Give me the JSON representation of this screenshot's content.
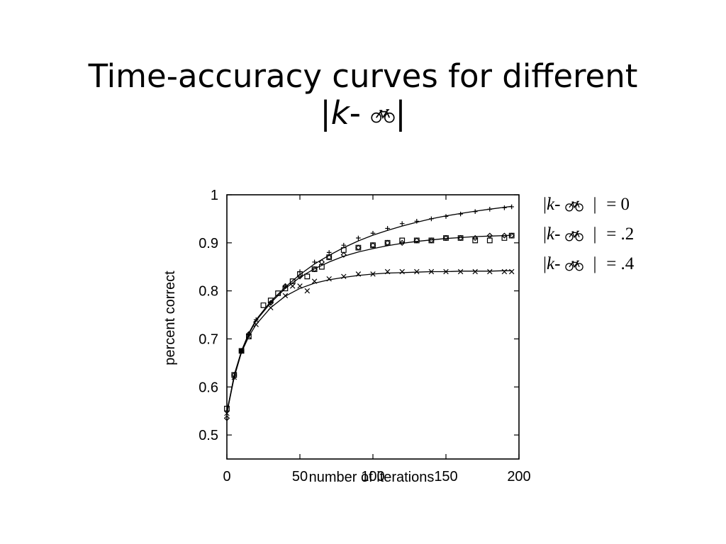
{
  "title": {
    "line1": "Time-accuracy curves for different",
    "line2_prefix": "|",
    "line2_var": "k",
    "line2_dash": "-",
    "line2_suffix": "|",
    "bike_icon": "bicycle-icon"
  },
  "legend": [
    {
      "bar_open": "|",
      "var": "k",
      "dash": "-",
      "bar_close": "|",
      "value": "=  0"
    },
    {
      "bar_open": "|",
      "var": "k",
      "dash": "-",
      "bar_close": "|",
      "value": "= .2"
    },
    {
      "bar_open": "|",
      "var": "k",
      "dash": "-",
      "bar_close": "|",
      "value": "= .4"
    }
  ],
  "chart_data": {
    "type": "scatter",
    "xlabel": "number of iterations",
    "ylabel": "percent  correct",
    "xlim": [
      0,
      200
    ],
    "ylim": [
      0.45,
      1.0
    ],
    "xticks": [
      "0",
      "50",
      "100",
      "150",
      "200"
    ],
    "yticks": [
      "1",
      "0.9",
      "0.8",
      "0.7",
      "0.6",
      "0.5"
    ],
    "ytick_values": [
      1.0,
      0.9,
      0.8,
      0.7,
      0.6,
      0.5
    ],
    "xtick_values": [
      0,
      50,
      100,
      150,
      200
    ],
    "grid": false,
    "series": [
      {
        "marker": "plus",
        "x": [
          0,
          5,
          10,
          15,
          20,
          30,
          40,
          50,
          60,
          70,
          80,
          90,
          100,
          110,
          120,
          130,
          140,
          150,
          160,
          170,
          180,
          190,
          195
        ],
        "y": [
          0.55,
          0.62,
          0.675,
          0.71,
          0.74,
          0.775,
          0.81,
          0.84,
          0.86,
          0.88,
          0.895,
          0.91,
          0.92,
          0.93,
          0.94,
          0.945,
          0.95,
          0.955,
          0.96,
          0.965,
          0.97,
          0.973,
          0.975
        ],
        "fit_x": [
          0,
          5,
          10,
          15,
          20,
          30,
          40,
          50,
          60,
          70,
          80,
          90,
          100,
          110,
          120,
          130,
          140,
          150,
          160,
          170,
          180,
          190,
          195
        ],
        "fit_y": [
          0.55,
          0.62,
          0.675,
          0.712,
          0.74,
          0.778,
          0.808,
          0.834,
          0.856,
          0.874,
          0.89,
          0.904,
          0.916,
          0.926,
          0.935,
          0.943,
          0.95,
          0.956,
          0.961,
          0.966,
          0.97,
          0.974,
          0.976
        ]
      },
      {
        "marker": "diamond",
        "x": [
          0,
          5,
          10,
          15,
          20,
          30,
          40,
          50,
          60,
          65,
          70,
          80,
          90,
          100,
          110,
          120,
          130,
          140,
          150,
          160,
          170,
          180,
          190,
          195
        ],
        "y": [
          0.535,
          0.625,
          0.675,
          0.71,
          0.735,
          0.775,
          0.81,
          0.83,
          0.845,
          0.86,
          0.87,
          0.875,
          0.89,
          0.895,
          0.9,
          0.9,
          0.905,
          0.905,
          0.91,
          0.91,
          0.91,
          0.915,
          0.915,
          0.915
        ],
        "fit_x": [
          0,
          5,
          10,
          15,
          20,
          30,
          40,
          50,
          60,
          70,
          80,
          90,
          100,
          110,
          120,
          130,
          140,
          150,
          160,
          170,
          180,
          190,
          195
        ],
        "fit_y": [
          0.545,
          0.625,
          0.675,
          0.71,
          0.738,
          0.775,
          0.805,
          0.828,
          0.846,
          0.86,
          0.872,
          0.881,
          0.888,
          0.894,
          0.899,
          0.903,
          0.906,
          0.909,
          0.911,
          0.913,
          0.914,
          0.915,
          0.916
        ]
      },
      {
        "marker": "square",
        "x": [
          0,
          5,
          10,
          15,
          25,
          30,
          35,
          40,
          45,
          50,
          55,
          60,
          65,
          70,
          80,
          90,
          100,
          110,
          120,
          130,
          140,
          150,
          160,
          170,
          180,
          190,
          195
        ],
        "y": [
          0.555,
          0.625,
          0.675,
          0.705,
          0.77,
          0.78,
          0.795,
          0.805,
          0.82,
          0.835,
          0.83,
          0.845,
          0.85,
          0.87,
          0.885,
          0.89,
          0.895,
          0.9,
          0.905,
          0.905,
          0.905,
          0.91,
          0.91,
          0.905,
          0.905,
          0.91,
          0.915
        ]
      },
      {
        "marker": "cross",
        "x": [
          0,
          5,
          10,
          15,
          20,
          30,
          40,
          45,
          50,
          55,
          60,
          70,
          80,
          90,
          100,
          110,
          120,
          130,
          140,
          150,
          160,
          170,
          180,
          190,
          195
        ],
        "y": [
          0.545,
          0.62,
          0.675,
          0.705,
          0.73,
          0.765,
          0.79,
          0.81,
          0.81,
          0.8,
          0.82,
          0.825,
          0.83,
          0.835,
          0.835,
          0.84,
          0.84,
          0.84,
          0.84,
          0.84,
          0.84,
          0.84,
          0.84,
          0.84,
          0.84
        ],
        "fit_x": [
          0,
          5,
          10,
          15,
          20,
          30,
          40,
          50,
          60,
          70,
          80,
          90,
          100,
          110,
          120,
          130,
          140,
          150,
          160,
          170,
          180,
          190,
          195
        ],
        "fit_y": [
          0.545,
          0.62,
          0.672,
          0.705,
          0.73,
          0.765,
          0.789,
          0.805,
          0.816,
          0.823,
          0.828,
          0.832,
          0.835,
          0.837,
          0.838,
          0.839,
          0.84,
          0.84,
          0.841,
          0.841,
          0.841,
          0.842,
          0.842
        ]
      }
    ]
  }
}
